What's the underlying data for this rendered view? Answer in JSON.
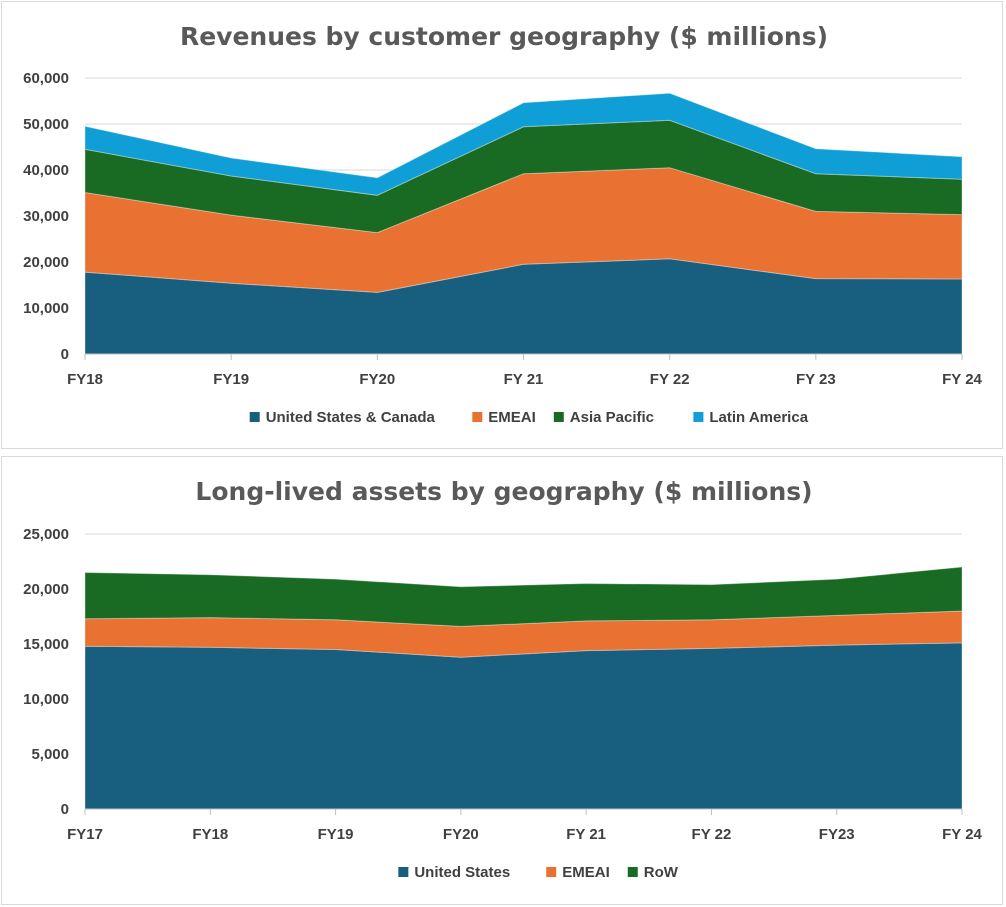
{
  "chart_data": [
    {
      "type": "area",
      "stacked": true,
      "title": "Revenues by customer geography ($ millions)",
      "xlabel": "",
      "ylabel": "",
      "categories": [
        "FY18",
        "FY19",
        "FY20",
        "FY 21",
        "FY 22",
        "FY 23",
        "FY 24"
      ],
      "ylim": [
        0,
        60000
      ],
      "yticks": [
        0,
        10000,
        20000,
        30000,
        40000,
        50000,
        60000
      ],
      "ytick_labels": [
        "0",
        "10,000",
        "20,000",
        "30,000",
        "40,000",
        "50,000",
        "60,000"
      ],
      "grid": true,
      "legend": "bottom",
      "series": [
        {
          "name": "United States & Canada",
          "color": "#185e7f",
          "values": [
            17800,
            15400,
            13400,
            19500,
            20700,
            16400,
            16300
          ]
        },
        {
          "name": "EMEAI",
          "color": "#e97132",
          "values": [
            17300,
            14800,
            13000,
            19700,
            19800,
            14600,
            14000
          ]
        },
        {
          "name": "Asia Pacific",
          "color": "#196b24",
          "values": [
            9400,
            8500,
            8100,
            10200,
            10300,
            8200,
            7700
          ]
        },
        {
          "name": "Latin America",
          "color": "#0f9ed5",
          "values": [
            5000,
            3900,
            3800,
            5200,
            5900,
            5400,
            4900
          ]
        }
      ]
    },
    {
      "type": "area",
      "stacked": true,
      "title": "Long-lived assets by geography ($ millions)",
      "xlabel": "",
      "ylabel": "",
      "categories": [
        "FY17",
        "FY18",
        "FY19",
        "FY20",
        "FY 21",
        "FY 22",
        "FY23",
        "FY 24"
      ],
      "ylim": [
        0,
        25000
      ],
      "yticks": [
        0,
        5000,
        10000,
        15000,
        20000,
        25000
      ],
      "ytick_labels": [
        "0",
        "5,000",
        "10,000",
        "15,000",
        "20,000",
        "25,000"
      ],
      "grid": true,
      "legend": "bottom",
      "series": [
        {
          "name": "United States",
          "color": "#185e7f",
          "values": [
            14800,
            14700,
            14500,
            13800,
            14400,
            14600,
            14900,
            15100
          ]
        },
        {
          "name": "EMEAI",
          "color": "#e97132",
          "values": [
            2500,
            2700,
            2700,
            2800,
            2700,
            2600,
            2700,
            2900
          ]
        },
        {
          "name": "RoW",
          "color": "#196b24",
          "values": [
            4200,
            3900,
            3700,
            3600,
            3400,
            3200,
            3300,
            4000
          ]
        }
      ]
    }
  ]
}
